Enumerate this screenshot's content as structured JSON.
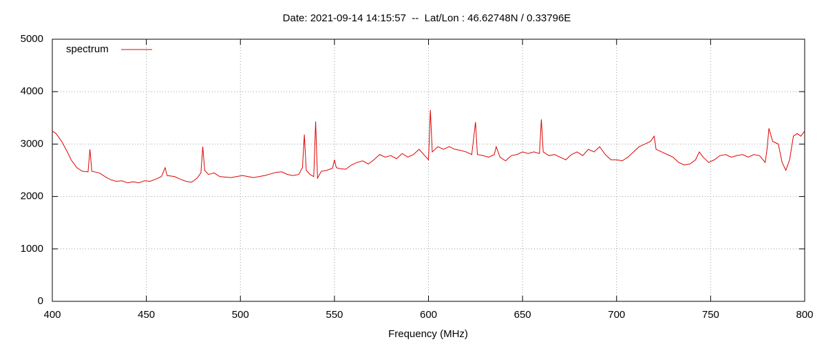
{
  "chart_data": {
    "type": "line",
    "title": "Date: 2021-09-14 14:15:57  --  Lat/Lon : 46.62748N / 0.33796E",
    "x_label": "Frequency (MHz)",
    "xlim": [
      400,
      800
    ],
    "xticks": [
      400,
      450,
      500,
      550,
      600,
      650,
      700,
      750,
      800
    ],
    "ylim": [
      0,
      5000
    ],
    "yticks": [
      0,
      1000,
      2000,
      3000,
      4000,
      5000
    ],
    "grid": true,
    "legend": "top-left",
    "x": [
      400,
      402,
      405,
      408,
      410,
      413,
      416,
      419,
      420,
      421,
      425,
      428,
      431,
      434,
      437,
      440,
      443,
      446,
      449,
      452,
      455,
      458,
      460,
      461,
      465,
      468,
      471,
      474,
      477,
      479,
      480,
      481,
      483,
      486,
      489,
      492,
      495,
      498,
      501,
      504,
      507,
      510,
      513,
      516,
      519,
      522,
      525,
      528,
      531,
      533,
      534,
      535,
      537,
      539,
      540,
      541,
      543,
      546,
      549,
      550,
      551,
      553,
      556,
      559,
      562,
      565,
      568,
      571,
      574,
      577,
      580,
      583,
      586,
      589,
      592,
      595,
      598,
      600,
      601,
      602,
      605,
      608,
      611,
      614,
      617,
      620,
      623,
      625,
      626,
      629,
      632,
      635,
      636,
      638,
      641,
      644,
      647,
      650,
      653,
      656,
      659,
      660,
      661,
      664,
      667,
      670,
      673,
      676,
      679,
      682,
      685,
      688,
      691,
      694,
      697,
      700,
      703,
      706,
      709,
      712,
      715,
      718,
      720,
      721,
      724,
      727,
      730,
      733,
      736,
      739,
      742,
      744,
      746,
      749,
      752,
      755,
      758,
      761,
      764,
      767,
      770,
      773,
      776,
      779,
      780,
      781,
      783,
      786,
      788,
      790,
      792,
      794,
      796,
      798,
      800
    ],
    "series": [
      {
        "name": "spectrum",
        "color": "#dd0000",
        "values": [
          3250,
          3200,
          3050,
          2850,
          2700,
          2550,
          2480,
          2470,
          2900,
          2480,
          2450,
          2380,
          2320,
          2290,
          2300,
          2260,
          2280,
          2260,
          2300,
          2290,
          2330,
          2380,
          2550,
          2400,
          2380,
          2330,
          2290,
          2270,
          2350,
          2450,
          2950,
          2500,
          2420,
          2450,
          2380,
          2370,
          2360,
          2380,
          2400,
          2380,
          2360,
          2380,
          2400,
          2430,
          2460,
          2470,
          2420,
          2400,
          2420,
          2550,
          3180,
          2500,
          2420,
          2380,
          3430,
          2350,
          2480,
          2500,
          2540,
          2700,
          2550,
          2530,
          2520,
          2600,
          2650,
          2680,
          2620,
          2700,
          2800,
          2750,
          2780,
          2720,
          2820,
          2750,
          2800,
          2900,
          2780,
          2700,
          3650,
          2850,
          2950,
          2900,
          2950,
          2900,
          2880,
          2850,
          2800,
          3420,
          2800,
          2780,
          2750,
          2800,
          2950,
          2750,
          2680,
          2780,
          2800,
          2850,
          2820,
          2850,
          2820,
          3470,
          2850,
          2780,
          2800,
          2750,
          2700,
          2800,
          2850,
          2780,
          2900,
          2850,
          2950,
          2800,
          2700,
          2700,
          2680,
          2750,
          2850,
          2950,
          3000,
          3050,
          3150,
          2900,
          2850,
          2800,
          2750,
          2650,
          2600,
          2620,
          2700,
          2850,
          2750,
          2650,
          2700,
          2780,
          2800,
          2750,
          2780,
          2800,
          2750,
          2800,
          2780,
          2650,
          2900,
          3300,
          3050,
          3000,
          2650,
          2500,
          2700,
          3150,
          3200,
          3150,
          3250
        ]
      }
    ]
  }
}
